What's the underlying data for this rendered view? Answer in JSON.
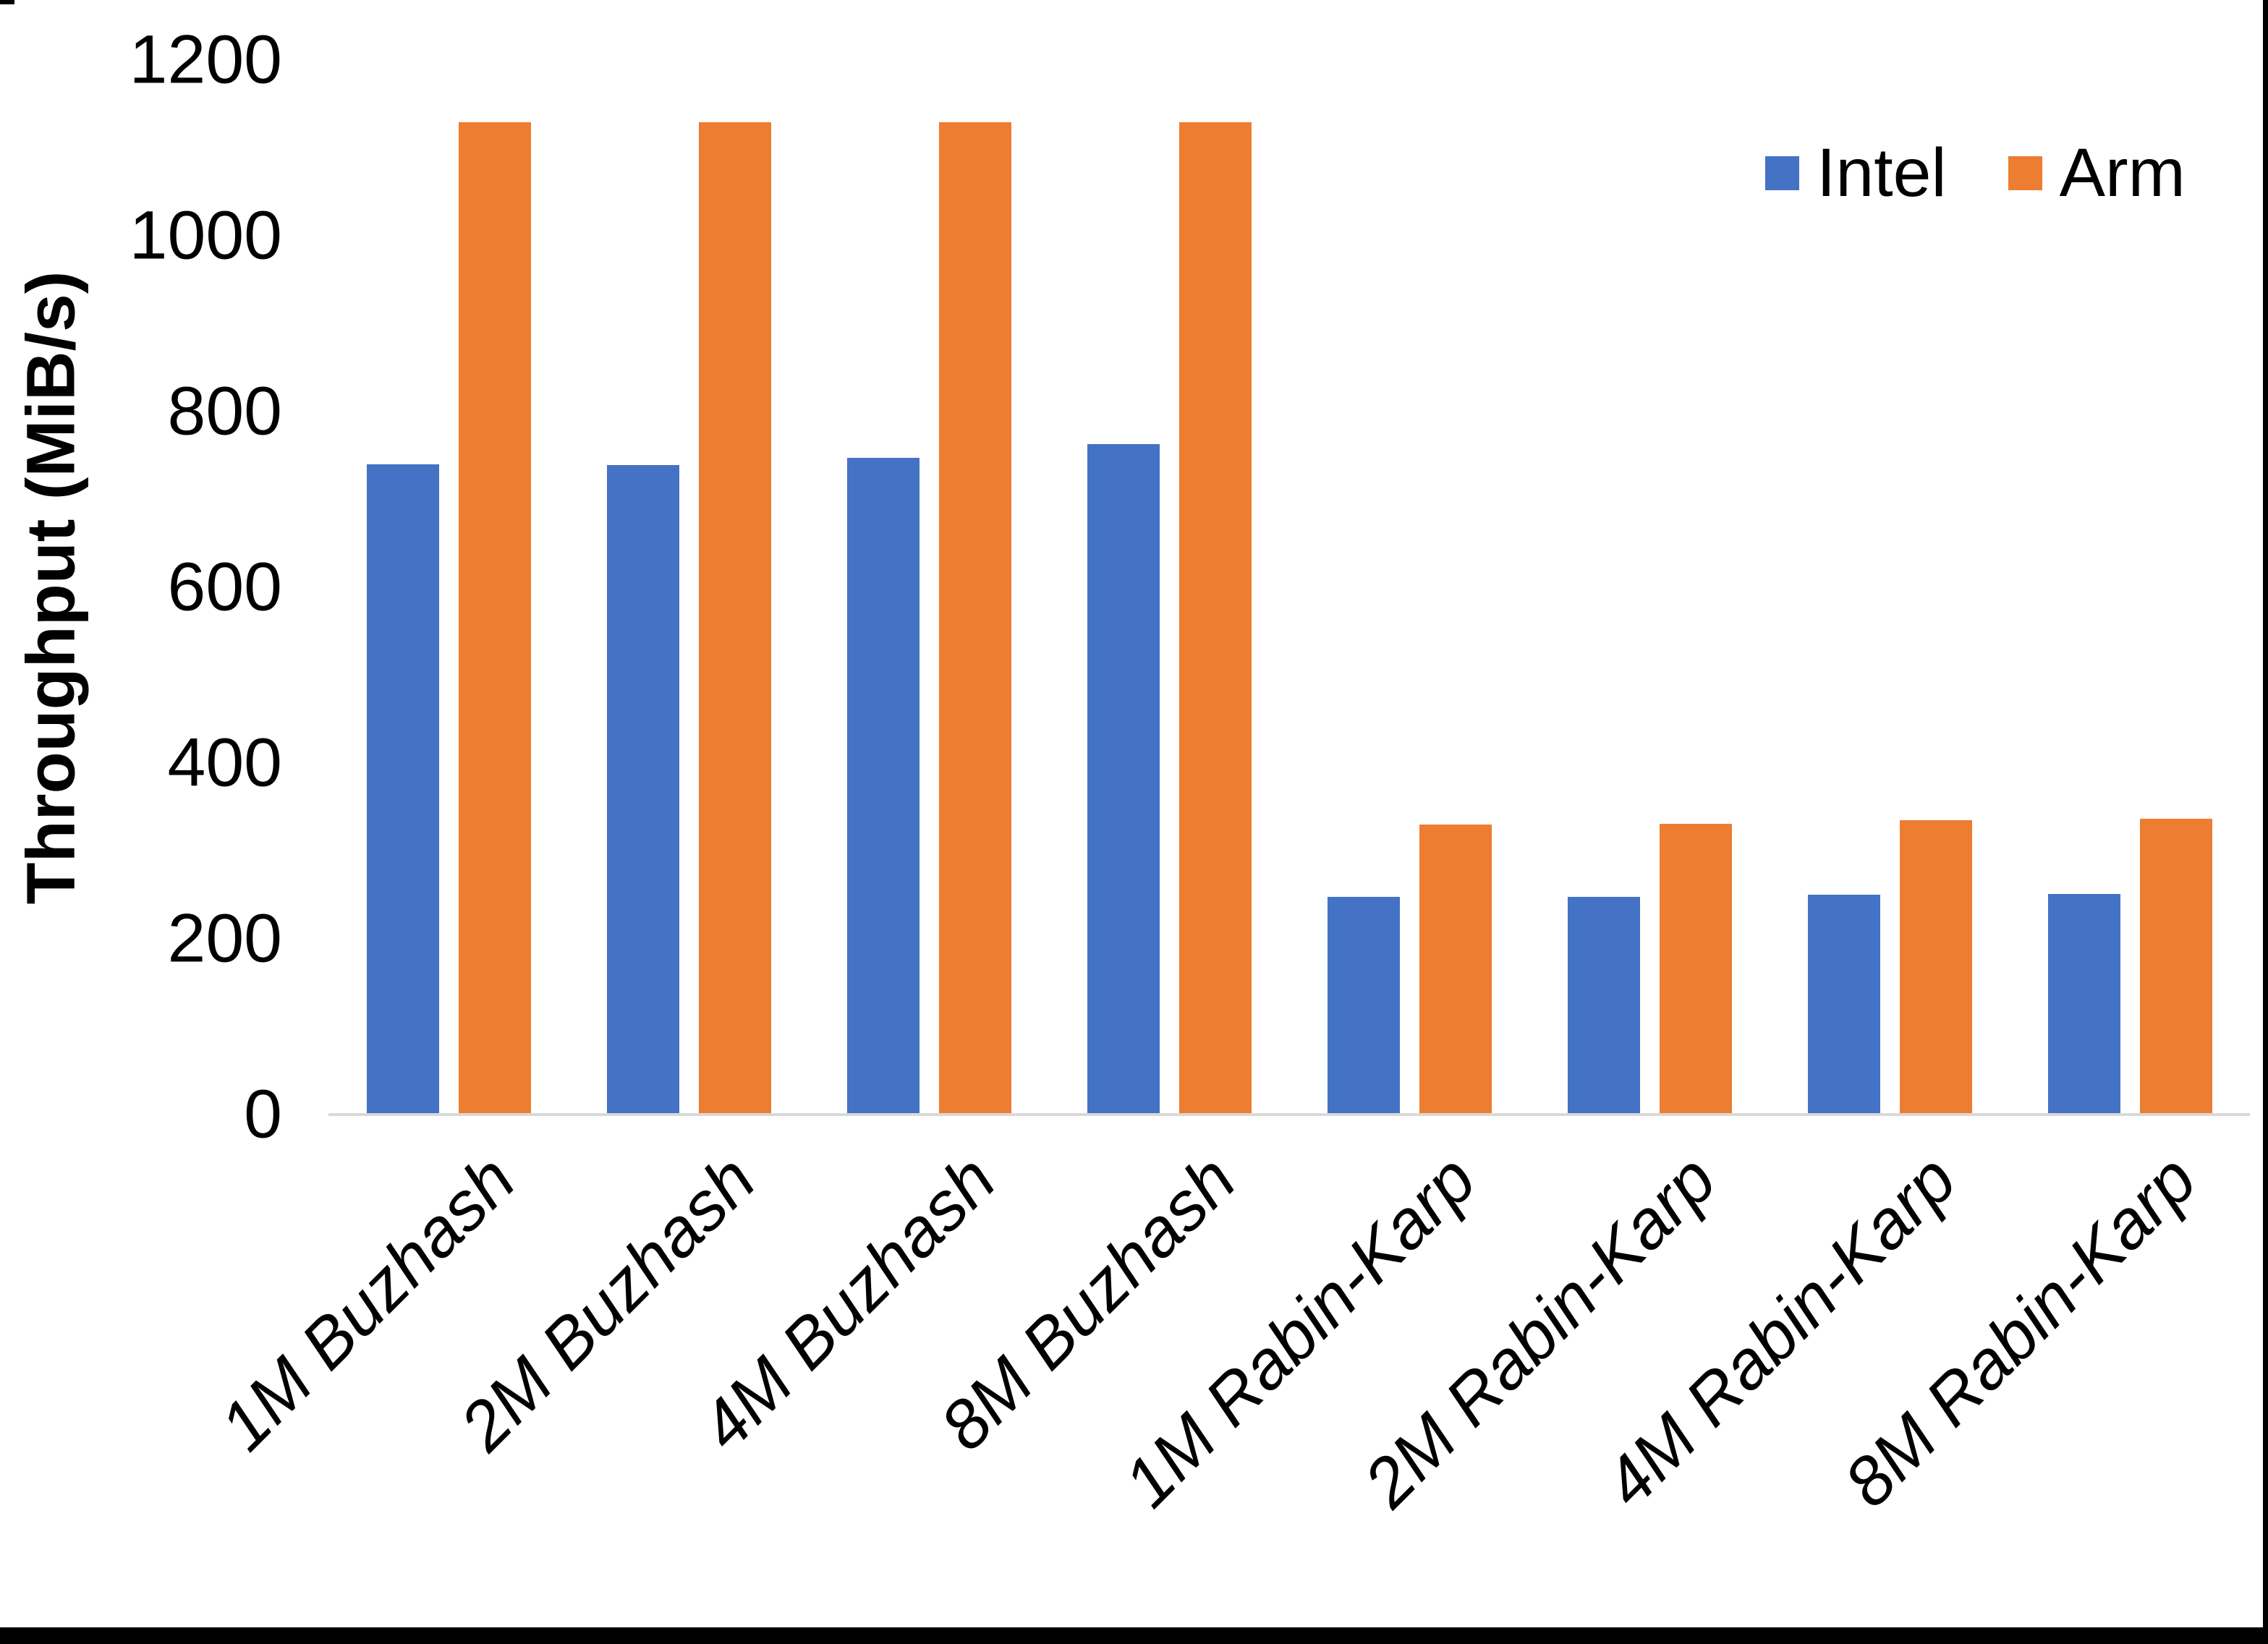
{
  "chart_data": {
    "type": "bar",
    "title": "",
    "xlabel": "",
    "ylabel": "Throughput (MiB/s)",
    "ylim": [
      0,
      1200
    ],
    "yticks": [
      0,
      200,
      400,
      600,
      800,
      1000,
      1200
    ],
    "grid": false,
    "legend_position": "top-right",
    "categories": [
      "1M Buzhash",
      "2M Buzhash",
      "4M Buzhash",
      "8M Buzhash",
      "1M Rabin-Karp",
      "2M Rabin-Karp",
      "4M Rabin-Karp",
      "8M Rabin-Karp"
    ],
    "series": [
      {
        "name": "Intel",
        "color": "#4472C4",
        "values": [
          740,
          739,
          747,
          763,
          248,
          248,
          250,
          251
        ]
      },
      {
        "name": "Arm",
        "color": "#ED7D31",
        "values": [
          1129,
          1129,
          1129,
          1129,
          330,
          331,
          335,
          337
        ]
      }
    ],
    "axis_line_color": "#D9D9D9",
    "text_color": "#000000",
    "background_color": "#FFFFFF"
  }
}
